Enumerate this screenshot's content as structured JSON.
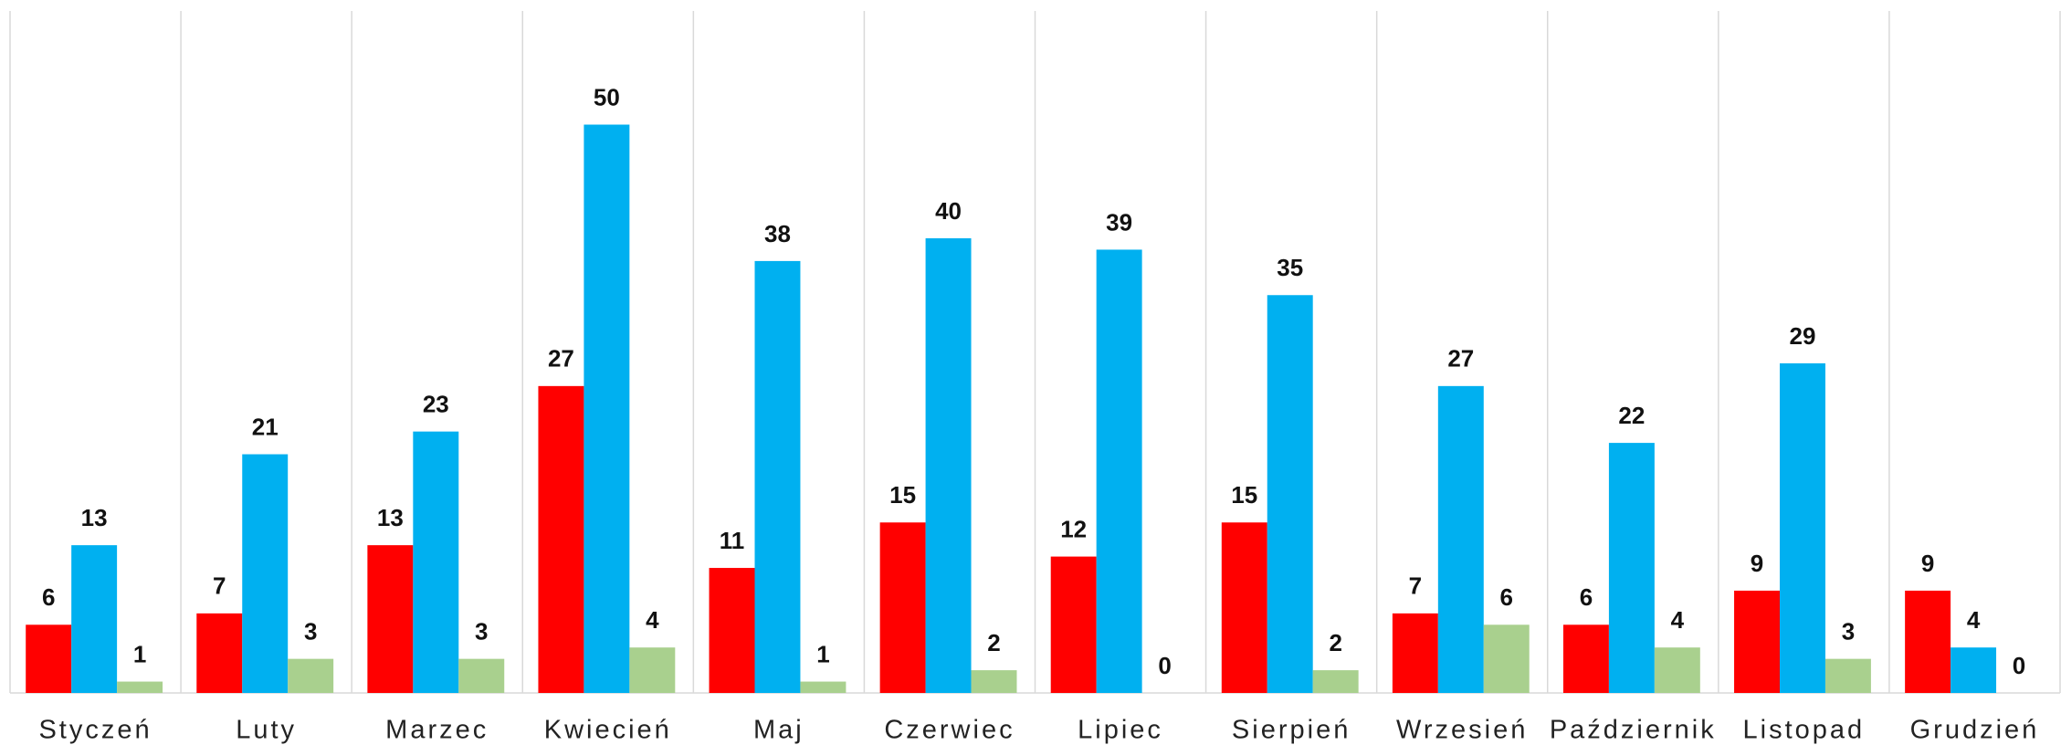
{
  "chart_data": {
    "type": "bar",
    "categories": [
      "Styczeń",
      "Luty",
      "Marzec",
      "Kwiecień",
      "Maj",
      "Czerwiec",
      "Lipiec",
      "Sierpień",
      "Wrzesień",
      "Październik",
      "Listopad",
      "Grudzień"
    ],
    "series": [
      {
        "color": "#ff0000",
        "values": [
          6,
          7,
          13,
          27,
          11,
          15,
          12,
          15,
          7,
          6,
          9,
          9
        ]
      },
      {
        "color": "#00b0f0",
        "values": [
          13,
          21,
          23,
          50,
          38,
          40,
          39,
          35,
          27,
          22,
          29,
          4
        ]
      },
      {
        "color": "#a9d08e",
        "values": [
          1,
          3,
          3,
          4,
          1,
          2,
          0,
          2,
          6,
          4,
          3,
          0
        ]
      }
    ],
    "ylim": [
      0,
      60
    ],
    "grid": true
  }
}
